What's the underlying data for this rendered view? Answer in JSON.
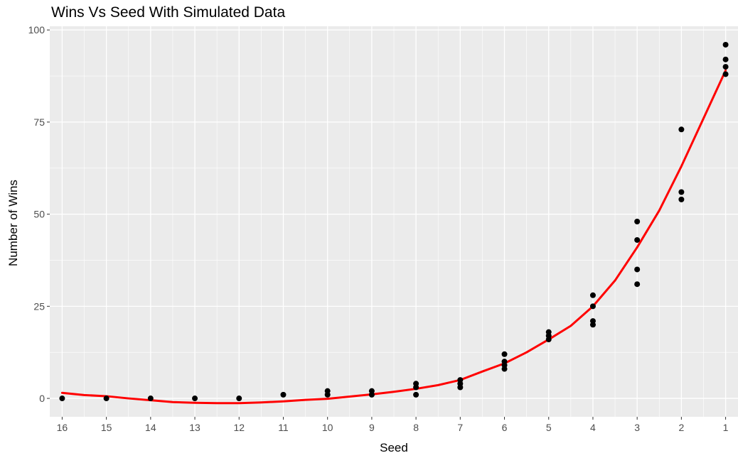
{
  "chart_data": {
    "type": "scatter",
    "title": "Wins Vs Seed With Simulated Data",
    "xlabel": "Seed",
    "ylabel": "Number of Wins",
    "x_reversed": true,
    "xlim": [
      16.28,
      0.72
    ],
    "ylim": [
      -5,
      101
    ],
    "x_ticks": [
      16,
      15,
      14,
      13,
      12,
      11,
      10,
      9,
      8,
      7,
      6,
      5,
      4,
      3,
      2,
      1
    ],
    "y_ticks": [
      0,
      25,
      50,
      75,
      100
    ],
    "grid": true,
    "legend": "none",
    "colors": {
      "panel": "#ebebeb",
      "grid_major": "#ffffff",
      "points": "#000000",
      "fit_line": "#ff0000"
    },
    "series": [
      {
        "type": "scatter",
        "points": [
          {
            "x": 16,
            "y": 0
          },
          {
            "x": 15,
            "y": 0
          },
          {
            "x": 14,
            "y": 0
          },
          {
            "x": 13,
            "y": 0
          },
          {
            "x": 12,
            "y": 0
          },
          {
            "x": 11,
            "y": 1
          },
          {
            "x": 10,
            "y": 1
          },
          {
            "x": 10,
            "y": 2
          },
          {
            "x": 9,
            "y": 1
          },
          {
            "x": 9,
            "y": 2
          },
          {
            "x": 8,
            "y": 1
          },
          {
            "x": 8,
            "y": 3
          },
          {
            "x": 8,
            "y": 4
          },
          {
            "x": 7,
            "y": 3
          },
          {
            "x": 7,
            "y": 4
          },
          {
            "x": 7,
            "y": 5
          },
          {
            "x": 6,
            "y": 8
          },
          {
            "x": 6,
            "y": 9
          },
          {
            "x": 6,
            "y": 10
          },
          {
            "x": 6,
            "y": 12
          },
          {
            "x": 5,
            "y": 16
          },
          {
            "x": 5,
            "y": 17
          },
          {
            "x": 5,
            "y": 18
          },
          {
            "x": 4,
            "y": 20
          },
          {
            "x": 4,
            "y": 21
          },
          {
            "x": 4,
            "y": 25
          },
          {
            "x": 4,
            "y": 28
          },
          {
            "x": 3,
            "y": 31
          },
          {
            "x": 3,
            "y": 35
          },
          {
            "x": 3,
            "y": 43
          },
          {
            "x": 3,
            "y": 48
          },
          {
            "x": 2,
            "y": 54
          },
          {
            "x": 2,
            "y": 56
          },
          {
            "x": 2,
            "y": 73
          },
          {
            "x": 1,
            "y": 88
          },
          {
            "x": 1,
            "y": 90
          },
          {
            "x": 1,
            "y": 92
          },
          {
            "x": 1,
            "y": 96
          }
        ]
      },
      {
        "type": "line",
        "points": [
          {
            "x": 16,
            "y": 1.5
          },
          {
            "x": 15.5,
            "y": 0.9
          },
          {
            "x": 15,
            "y": 0.6
          },
          {
            "x": 14.5,
            "y": 0
          },
          {
            "x": 14,
            "y": -0.5
          },
          {
            "x": 13.5,
            "y": -1
          },
          {
            "x": 13,
            "y": -1.2
          },
          {
            "x": 12.5,
            "y": -1.3
          },
          {
            "x": 12,
            "y": -1.3
          },
          {
            "x": 11.5,
            "y": -1.1
          },
          {
            "x": 11,
            "y": -0.8
          },
          {
            "x": 10.5,
            "y": -0.4
          },
          {
            "x": 10,
            "y": -0.1
          },
          {
            "x": 9.5,
            "y": 0.5
          },
          {
            "x": 9,
            "y": 1.1
          },
          {
            "x": 8.5,
            "y": 1.8
          },
          {
            "x": 8,
            "y": 2.6
          },
          {
            "x": 7.5,
            "y": 3.6
          },
          {
            "x": 7,
            "y": 5
          },
          {
            "x": 6.5,
            "y": 7.3
          },
          {
            "x": 6,
            "y": 9.5
          },
          {
            "x": 5.5,
            "y": 12.5
          },
          {
            "x": 5,
            "y": 16
          },
          {
            "x": 4.5,
            "y": 19.7
          },
          {
            "x": 4,
            "y": 25
          },
          {
            "x": 3.5,
            "y": 32
          },
          {
            "x": 3,
            "y": 41
          },
          {
            "x": 2.5,
            "y": 51
          },
          {
            "x": 2,
            "y": 63
          },
          {
            "x": 1.5,
            "y": 76
          },
          {
            "x": 1,
            "y": 89
          }
        ]
      }
    ]
  }
}
